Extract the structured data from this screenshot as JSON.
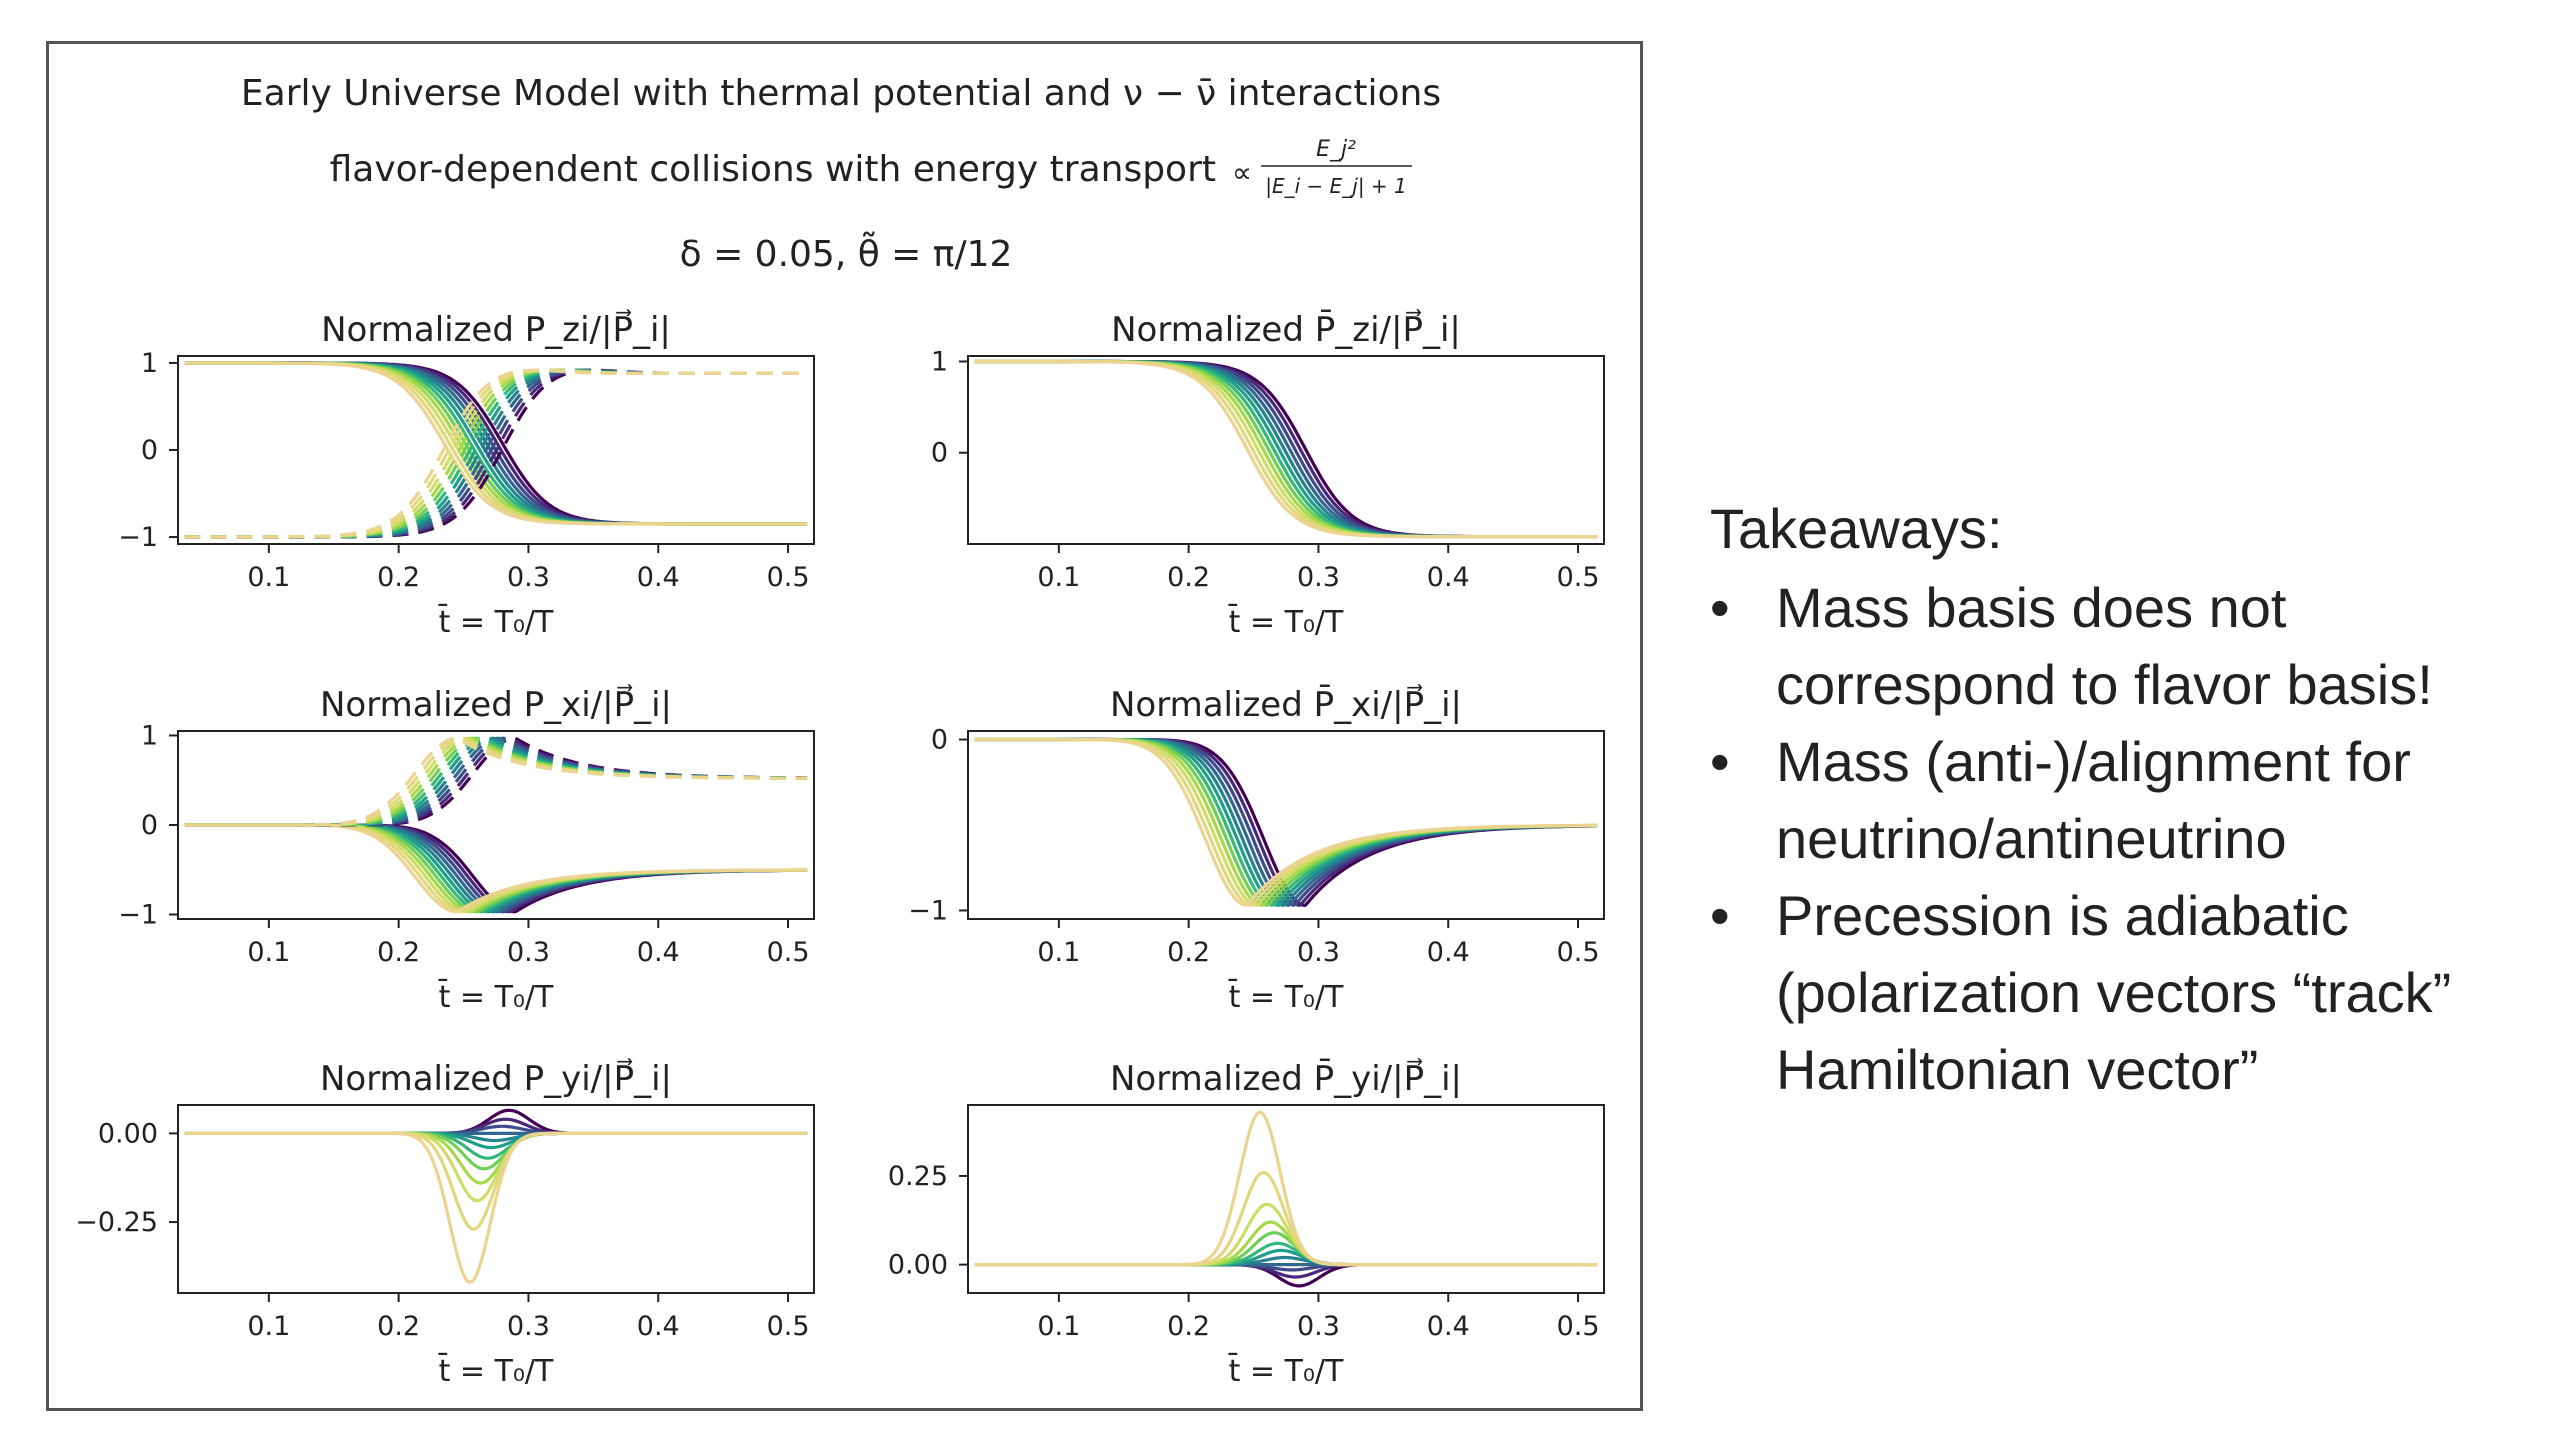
{
  "figure": {
    "title_lines": [
      "Early Universe Model with thermal potential and ν − ν̄ interactions",
      "flavor-dependent collisions with energy transport",
      "δ = 0.05, θ̃ = π/12"
    ],
    "proportional_formula": {
      "prefix": "∝",
      "numerator": "E_j²",
      "denominator": "|E_i − E_j| + 1"
    }
  },
  "chart_data": [
    {
      "type": "line",
      "title": "Normalized P_zi/|P⃗_i|",
      "xlabel": "t̄ = T₀/T",
      "xlim": [
        0.03,
        0.52
      ],
      "ylim": [
        -1.08,
        1.08
      ],
      "x_ticks": [
        "0.1",
        "0.2",
        "0.3",
        "0.4",
        "0.5"
      ],
      "y_ticks": [
        "1",
        "0",
        "−1"
      ],
      "y_tick_values": [
        1,
        0,
        -1
      ],
      "series": [
        {
          "style": "solid",
          "description": "sigmoid drop",
          "start": 1.0,
          "end": -0.85,
          "transition_t": [
            0.235,
            0.28
          ],
          "count": 12
        },
        {
          "style": "dashed",
          "description": "sigmoid rise with overshoot",
          "start": -1.0,
          "end": 0.88,
          "transition_t": [
            0.235,
            0.28
          ],
          "count": 12
        }
      ],
      "colormap": "viridis"
    },
    {
      "type": "line",
      "title": "Normalized P̄_zi/|P⃗_i|",
      "xlabel": "t̄ = T₀/T",
      "xlim": [
        0.03,
        0.52
      ],
      "ylim": [
        -1.0,
        1.06
      ],
      "x_ticks": [
        "0.1",
        "0.2",
        "0.3",
        "0.4",
        "0.5"
      ],
      "y_ticks": [
        "1",
        "0"
      ],
      "y_tick_values": [
        1,
        0
      ],
      "series": [
        {
          "style": "solid",
          "description": "sigmoid drop",
          "start": 1.0,
          "end": -0.92,
          "transition_t": [
            0.245,
            0.29
          ],
          "count": 12
        }
      ],
      "colormap": "viridis"
    },
    {
      "type": "line",
      "title": "Normalized P_xi/|P⃗_i|",
      "xlabel": "t̄ = T₀/T",
      "xlim": [
        0.03,
        0.52
      ],
      "ylim": [
        -1.05,
        1.05
      ],
      "x_ticks": [
        "0.1",
        "0.2",
        "0.3",
        "0.4",
        "0.5"
      ],
      "y_ticks": [
        "1",
        "0",
        "−1"
      ],
      "y_tick_values": [
        1,
        0,
        -1
      ],
      "series": [
        {
          "style": "solid",
          "description": "dip to -1 then relax",
          "start": 0.0,
          "peak": -0.97,
          "end": -0.5,
          "peak_t": [
            0.245,
            0.29
          ],
          "count": 12
        },
        {
          "style": "dashed",
          "description": "rise to +1 then relax",
          "start": 0.0,
          "peak": 0.97,
          "end": 0.52,
          "peak_t": [
            0.245,
            0.29
          ],
          "count": 12
        }
      ],
      "colormap": "viridis"
    },
    {
      "type": "line",
      "title": "Normalized P̄_xi/|P⃗_i|",
      "xlabel": "t̄ = T₀/T",
      "xlim": [
        0.03,
        0.52
      ],
      "ylim": [
        -1.05,
        0.05
      ],
      "x_ticks": [
        "0.1",
        "0.2",
        "0.3",
        "0.4",
        "0.5"
      ],
      "y_ticks": [
        "0",
        "−1"
      ],
      "y_tick_values": [
        0,
        -1
      ],
      "series": [
        {
          "style": "solid",
          "description": "dip to -1 then relax",
          "start": 0.0,
          "peak": -0.97,
          "end": -0.5,
          "peak_t": [
            0.245,
            0.29
          ],
          "count": 12
        }
      ],
      "colormap": "viridis"
    },
    {
      "type": "line",
      "title": "Normalized P_yi/|P⃗_i|",
      "xlabel": "t̄ = T₀/T",
      "xlim": [
        0.03,
        0.52
      ],
      "ylim": [
        -0.45,
        0.08
      ],
      "x_ticks": [
        "0.1",
        "0.2",
        "0.3",
        "0.4",
        "0.5"
      ],
      "y_ticks": [
        "0.00",
        "−0.25"
      ],
      "y_tick_values": [
        0.0,
        -0.25
      ],
      "series": [
        {
          "style": "solid",
          "description": "pulse",
          "peak_amplitudes": [
            0.065,
            0.04,
            0.02,
            0.0,
            -0.02,
            -0.04,
            -0.07,
            -0.1,
            -0.14,
            -0.19,
            -0.27,
            -0.42
          ],
          "peak_t": [
            0.285,
            0.255
          ],
          "count": 12
        }
      ],
      "colormap": "viridis"
    },
    {
      "type": "line",
      "title": "Normalized P̄_yi/|P⃗_i|",
      "xlabel": "t̄ = T₀/T",
      "xlim": [
        0.03,
        0.52
      ],
      "ylim": [
        -0.08,
        0.45
      ],
      "x_ticks": [
        "0.1",
        "0.2",
        "0.3",
        "0.4",
        "0.5"
      ],
      "y_ticks": [
        "0.25",
        "0.00"
      ],
      "y_tick_values": [
        0.25,
        0.0
      ],
      "series": [
        {
          "style": "solid",
          "description": "pulse",
          "peak_amplitudes": [
            -0.06,
            -0.035,
            -0.015,
            0.0,
            0.02,
            0.04,
            0.06,
            0.09,
            0.12,
            0.17,
            0.26,
            0.43
          ],
          "peak_t": [
            0.285,
            0.255
          ],
          "count": 12
        }
      ],
      "colormap": "viridis"
    }
  ],
  "colors": [
    "#440154",
    "#482878",
    "#3e4a89",
    "#31688e",
    "#26828e",
    "#1f9e89",
    "#35b779",
    "#6ece58",
    "#a5d84a",
    "#cfdc65",
    "#e1d77e",
    "#ecd38f"
  ],
  "takeaways": {
    "heading": "Takeaways:",
    "bullet_symbol": "•",
    "items": [
      [
        "Mass basis does not",
        "correspond to flavor basis!"
      ],
      [
        "Mass (anti-)/alignment for",
        "neutrino/antineutrino"
      ],
      [
        "Precession is adiabatic",
        "(polarization vectors “track”",
        "Hamiltonian vector”"
      ]
    ]
  }
}
